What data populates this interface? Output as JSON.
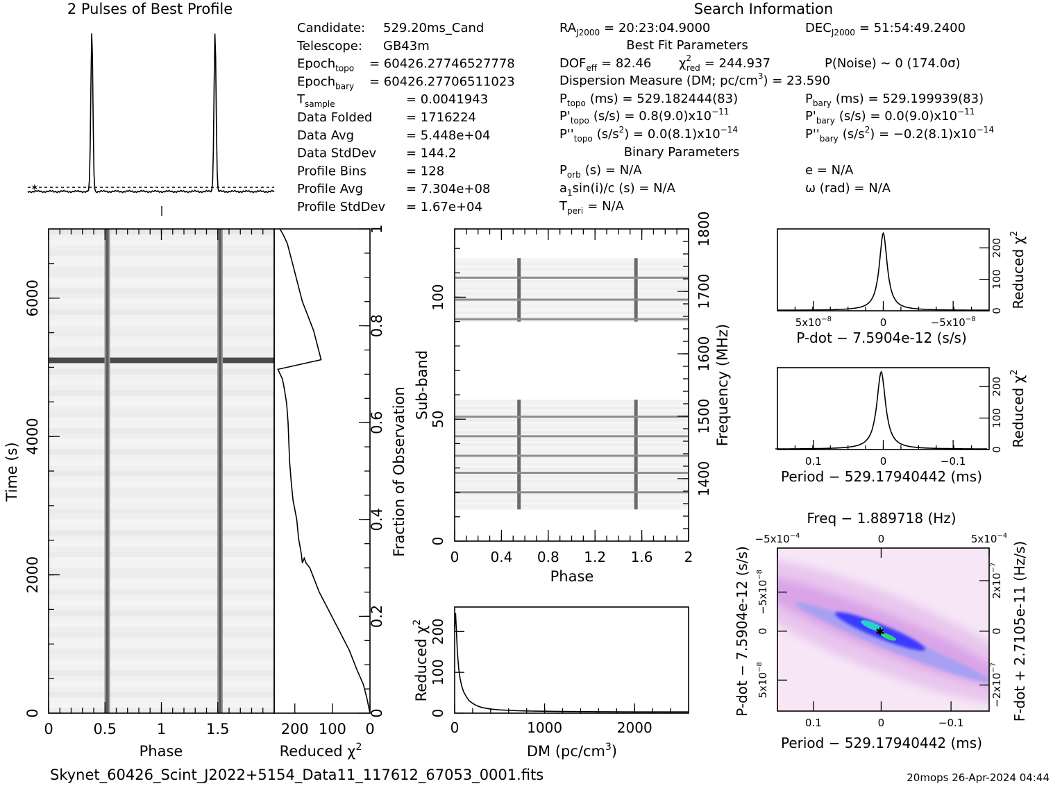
{
  "header": {
    "profile_title": "2 Pulses of Best Profile",
    "search_title": "Search Information",
    "best_fit_title": "Best Fit Parameters",
    "binary_title": "Binary Parameters"
  },
  "info_left": [
    {
      "label": "Candidate:",
      "value": "529.20ms_Cand"
    },
    {
      "label": "Telescope:",
      "value": "GB43m"
    },
    {
      "label": "Epoch",
      "sub": "topo",
      "value": "= 60426.27746527778"
    },
    {
      "label": "Epoch",
      "sub": "bary",
      "value": "= 60426.27706511023"
    },
    {
      "label": "T",
      "sub": "sample",
      "value": "=   0.0041943"
    },
    {
      "label": "Data Folded",
      "value": "=   1716224"
    },
    {
      "label": "Data Avg",
      "value": "=   5.448e+04"
    },
    {
      "label": "Data StdDev",
      "value": "=   144.2"
    },
    {
      "label": "Profile Bins",
      "value": "=   128"
    },
    {
      "label": "Profile Avg",
      "value": "=   7.304e+08"
    },
    {
      "label": "Profile StdDev",
      "value": "=   1.67e+04"
    }
  ],
  "info_right": {
    "ra": "RA",
    "ra_sub": "J2000",
    "ra_value": "= 20:23:04.9000",
    "dec": "DEC",
    "dec_sub": "J2000",
    "dec_value": "= 51:54:49.2400",
    "dof": "DOF",
    "dof_sub": "eff",
    "dof_value": "= 82.46",
    "chi": "χ",
    "chi_sup": "2",
    "chi_sub": "red",
    "chi_value": "= 244.937",
    "pnoise": "P(Noise) ~ 0   (174.0σ)",
    "dm_line": "Dispersion Measure (DM; pc/cm",
    "dm_sup": "3",
    "dm_value": ") = 23.590",
    "ptopo": "P",
    "ptopo_sub": "topo",
    "ptopo_value": "(ms) =  529.182444(83)",
    "pbary": "P",
    "pbary_sub": "bary",
    "pbary_value": "(ms) =  529.199939(83)",
    "pdtopo": "P'",
    "pdtopo_sub": "topo",
    "pdtopo_value": "(s/s) =  0.8(9.0)x10",
    "pdtopo_exp": "−11",
    "pdbary": "P'",
    "pdbary_sub": "bary",
    "pdbary_value": "(s/s) = 0.0(9.0)x10",
    "pdbary_exp": "−11",
    "pddtopo": "P''",
    "pddtopo_sub": "topo",
    "pddtopo_value": "(s/s",
    "pddtopo_value2": ") = 0.0(8.1)x10",
    "pddtopo_exp": "−14",
    "pddbary": "P''",
    "pddbary_sub": "bary",
    "pddbary_value": "(s/s",
    "pddbary_value2": ") = −0.2(8.1)x10",
    "pddbary_exp": "−14",
    "porb": "P",
    "porb_sub": "orb",
    "porb_value": "(s) = N/A",
    "e_value": "e = N/A",
    "a1": "a",
    "a1_sub": "1",
    "a1_value": "sin(i)/c (s) = N/A",
    "omega": "ω (rad) = N/A",
    "tperi": "T",
    "tperi_sub": "peri",
    "tperi_value": "= N/A"
  },
  "footer": {
    "filename": "Skynet_60426_Scint_J2022+5154_Data11_117612_67053_0001.fits",
    "stamp": "20mops 26-Apr-2024 04:44"
  },
  "colors": {
    "ink": "#000000",
    "grey_band": "#d9d9d9",
    "contour_blue": "#1a1aff",
    "contour_center": "#2ad1c8",
    "background_pink": "#f4e1f4"
  },
  "chart_data": [
    {
      "type": "line",
      "id": "profile",
      "title": "2 Pulses of Best Profile",
      "x_range": [
        0,
        2
      ],
      "pulse_phases": [
        0.52,
        1.52
      ],
      "baseline_level": 0.03,
      "peak_level": 1.0
    },
    {
      "type": "heatmap",
      "id": "time-phase",
      "xlabel": "Phase",
      "ylabel": "Time (s)",
      "xlim": [
        0,
        2
      ],
      "ylim": [
        0,
        7000
      ],
      "x_ticks": [
        "0",
        "0.5",
        "1",
        "1.5"
      ],
      "y_ticks": [
        "0",
        "2000",
        "4000",
        "6000"
      ],
      "pulse_phases": [
        0.52,
        1.52
      ],
      "bright_row_time": 5100
    },
    {
      "type": "line",
      "id": "reduced-chi-vs-fraction",
      "xlabel": "Reduced χ",
      "xlabel_sup": "2",
      "ylabel": "Fraction of Observation",
      "x_ticks": [
        "200",
        "100",
        "0"
      ],
      "y_ticks": [
        "0",
        "0.2",
        "0.4",
        "0.6",
        "0.8",
        "1"
      ],
      "x_reversed": true,
      "xlim": [
        255,
        0
      ],
      "ylim": [
        0,
        1
      ],
      "x": [
        0,
        8,
        18,
        35,
        55,
        75,
        95,
        115,
        135,
        150,
        160,
        170,
        175,
        180,
        183,
        190,
        195,
        205,
        210,
        214,
        216,
        218,
        222,
        228,
        233,
        245,
        130,
        140,
        150,
        165,
        180,
        190,
        200,
        210,
        220,
        232,
        240
      ],
      "y": [
        0.0,
        0.03,
        0.06,
        0.09,
        0.13,
        0.16,
        0.19,
        0.22,
        0.25,
        0.28,
        0.3,
        0.31,
        0.32,
        0.31,
        0.33,
        0.36,
        0.4,
        0.44,
        0.48,
        0.52,
        0.56,
        0.6,
        0.64,
        0.67,
        0.69,
        0.71,
        0.73,
        0.76,
        0.79,
        0.82,
        0.85,
        0.88,
        0.91,
        0.94,
        0.97,
        0.99,
        1.0
      ]
    },
    {
      "type": "heatmap",
      "id": "subband-phase",
      "xlabel": "Phase",
      "ylabel": "Sub-band",
      "ylabel2": "Frequency (MHz)",
      "xlim": [
        0,
        2
      ],
      "ylim": [
        0,
        128
      ],
      "y2lim": [
        1300,
        1800
      ],
      "x_ticks": [
        "0",
        "0.4",
        "0.8",
        "1.2",
        "1.6",
        "2"
      ],
      "y_ticks": [
        "0",
        "50",
        "100"
      ],
      "y2_ticks": [
        "1400",
        "1500",
        "1600",
        "1700",
        "1800"
      ],
      "pulse_phases": [
        0.55,
        1.55
      ],
      "bands": [
        [
          13,
          58
        ],
        [
          90,
          116
        ]
      ]
    },
    {
      "type": "line",
      "id": "dm-chi",
      "xlabel": "DM (pc/cm",
      "xlabel_sup": "3",
      "xlabel_end": ")",
      "ylabel": "Reduced χ",
      "ylabel_sup": "2",
      "xlim": [
        0,
        2600
      ],
      "ylim": [
        0,
        260
      ],
      "x_ticks": [
        "0",
        "1000",
        "2000"
      ],
      "y_ticks": [
        "0",
        "100",
        "200"
      ],
      "x": [
        0,
        10,
        20,
        30,
        45,
        60,
        80,
        100,
        130,
        160,
        200,
        250,
        300,
        400,
        500,
        700,
        900,
        1200,
        1600,
        2000,
        2600
      ],
      "y": [
        210,
        245,
        200,
        150,
        110,
        85,
        65,
        52,
        40,
        31,
        24,
        18,
        14,
        10,
        8,
        6,
        5,
        4,
        3.5,
        3,
        3
      ]
    },
    {
      "type": "line",
      "id": "pdot-chi",
      "xlabel": "P-dot − 7.5904e-12 (s/s)",
      "ylabel": "Reduced χ",
      "ylabel_sup": "2",
      "x_ticks": [
        "5x10",
        "0",
        "−5x10"
      ],
      "x_tick_exp": "−8",
      "y_ticks": [
        "0",
        "100",
        "200"
      ],
      "xlim": [
        7.5e-08,
        -7.5e-08
      ],
      "ylim": [
        0,
        260
      ],
      "peak": 245
    },
    {
      "type": "line",
      "id": "period-chi",
      "xlabel": "Period − 529.17940442 (ms)",
      "ylabel": "Reduced χ",
      "ylabel_sup": "2",
      "x_ticks": [
        "0.1",
        "0",
        "−0.1"
      ],
      "y_ticks": [
        "0",
        "100",
        "200"
      ],
      "xlim": [
        0.15,
        -0.15
      ],
      "ylim": [
        0,
        260
      ],
      "peak": 245
    },
    {
      "type": "heatmap",
      "id": "p-pdot",
      "xlabel": "Period − 529.17940442 (ms)",
      "ylabel": "P-dot − 7.5904e-12 (s/s)",
      "top_label": "Freq − 1.889718 (Hz)",
      "right_label": "F-dot + 2.7105e-11 (Hz/s)",
      "x_ticks": [
        "0.1",
        "0",
        "−0.1"
      ],
      "top_ticks": [
        "−5x10",
        "0",
        "5x10"
      ],
      "top_tick_exp": "−4",
      "y_ticks": [
        "−5x10",
        "0",
        "5x10"
      ],
      "y_tick_exp": "−8",
      "right_ticks": [
        "2x10",
        "0",
        "−2x10"
      ],
      "right_tick_exp": "−7",
      "best_marker": "✱"
    }
  ]
}
